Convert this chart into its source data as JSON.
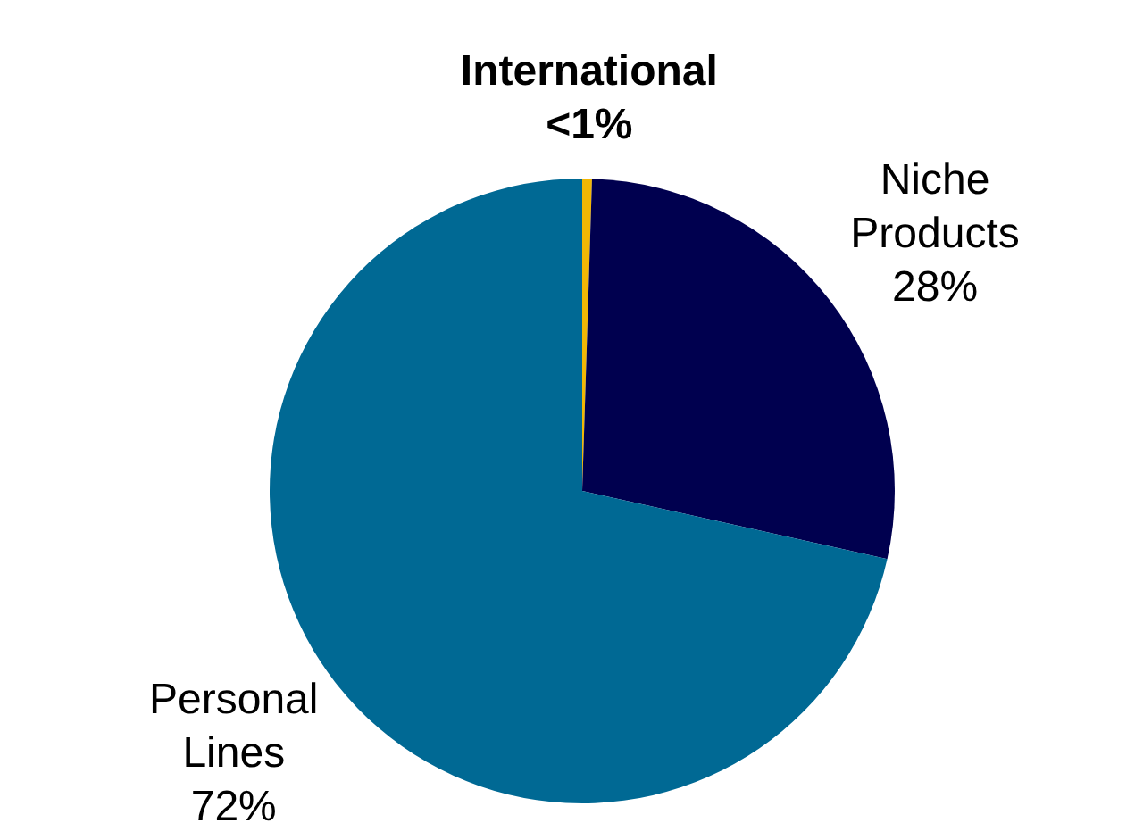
{
  "chart_data": {
    "type": "pie",
    "categories": [
      "International",
      "Niche Products",
      "Personal Lines"
    ],
    "values": [
      0.5,
      28,
      71.5
    ],
    "value_labels": [
      "<1%",
      "28%",
      "72%"
    ],
    "colors": [
      "#f2b705",
      "#00004f",
      "#006994"
    ],
    "legend": false
  }
}
